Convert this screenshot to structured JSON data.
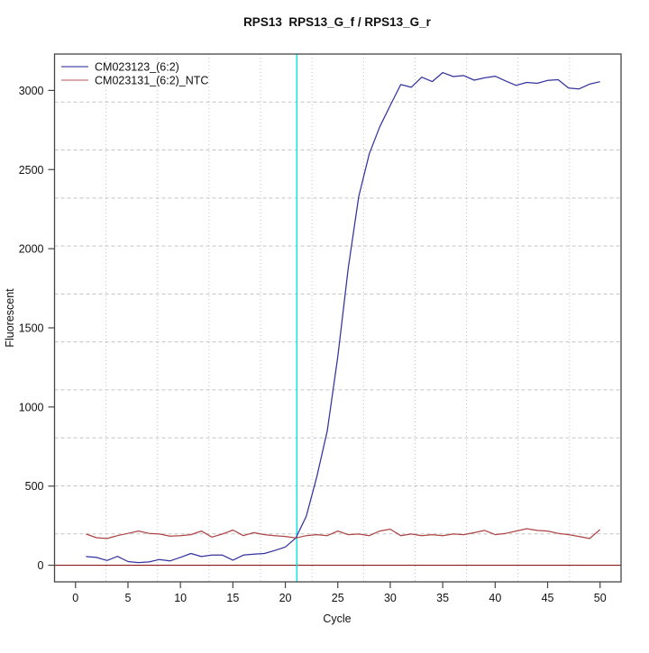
{
  "chart_data": {
    "type": "line",
    "title": "RPS13  RPS13_G_f / RPS13_G_r",
    "xlabel": "Cycle",
    "ylabel": "Fluorescent",
    "xlim": [
      -2,
      52
    ],
    "ylim": [
      -105,
      3230
    ],
    "x_ticks": [
      0,
      5,
      10,
      15,
      20,
      25,
      30,
      35,
      40,
      45,
      50
    ],
    "y_ticks": [
      0,
      500,
      1000,
      1500,
      2000,
      2500,
      3000
    ],
    "grid": {
      "nx": 11,
      "ny": 11,
      "color": "#c3c3c3",
      "h_dash": "4 3",
      "v_dash": "1 3"
    },
    "threshold_line": {
      "orientation": "vertical",
      "cycle": 21.1,
      "color": "#00e5e5"
    },
    "baseline": {
      "orientation": "horizontal",
      "value": 0,
      "color": "#8b1a1a"
    },
    "legend_position": "top-left",
    "x": [
      1,
      2,
      3,
      4,
      5,
      6,
      7,
      8,
      9,
      10,
      11,
      12,
      13,
      14,
      15,
      16,
      17,
      18,
      19,
      20,
      21,
      22,
      23,
      24,
      25,
      26,
      27,
      28,
      29,
      30,
      31,
      32,
      33,
      34,
      35,
      36,
      37,
      38,
      39,
      40,
      41,
      42,
      43,
      44,
      45,
      46,
      47,
      48,
      49,
      50
    ],
    "series": [
      {
        "name": "CM023123_(6:2)",
        "color": "#33339e",
        "legend_color": "#4a4aa8",
        "values": [
          55,
          49,
          30,
          56,
          23,
          17,
          21,
          36,
          27,
          50,
          74,
          55,
          64,
          64,
          32,
          64,
          70,
          74,
          93,
          115,
          172,
          310,
          560,
          850,
          1320,
          1880,
          2330,
          2600,
          2770,
          2905,
          3037,
          3020,
          3084,
          3056,
          3113,
          3088,
          3094,
          3065,
          3080,
          3090,
          3060,
          3032,
          3051,
          3045,
          3063,
          3068,
          3015,
          3010,
          3040,
          3055
        ]
      },
      {
        "name": "CM023131_(6:2)_NTC",
        "color": "#ad4545",
        "legend_color": "#c87878",
        "values": [
          197,
          174,
          169,
          187,
          201,
          216,
          201,
          197,
          184,
          187,
          193,
          216,
          178,
          197,
          222,
          187,
          206,
          193,
          187,
          182,
          172,
          187,
          193,
          187,
          216,
          193,
          197,
          187,
          216,
          228,
          187,
          197,
          187,
          193,
          187,
          197,
          193,
          206,
          220,
          193,
          201,
          216,
          231,
          220,
          216,
          201,
          193,
          182,
          169,
          225
        ]
      }
    ]
  }
}
